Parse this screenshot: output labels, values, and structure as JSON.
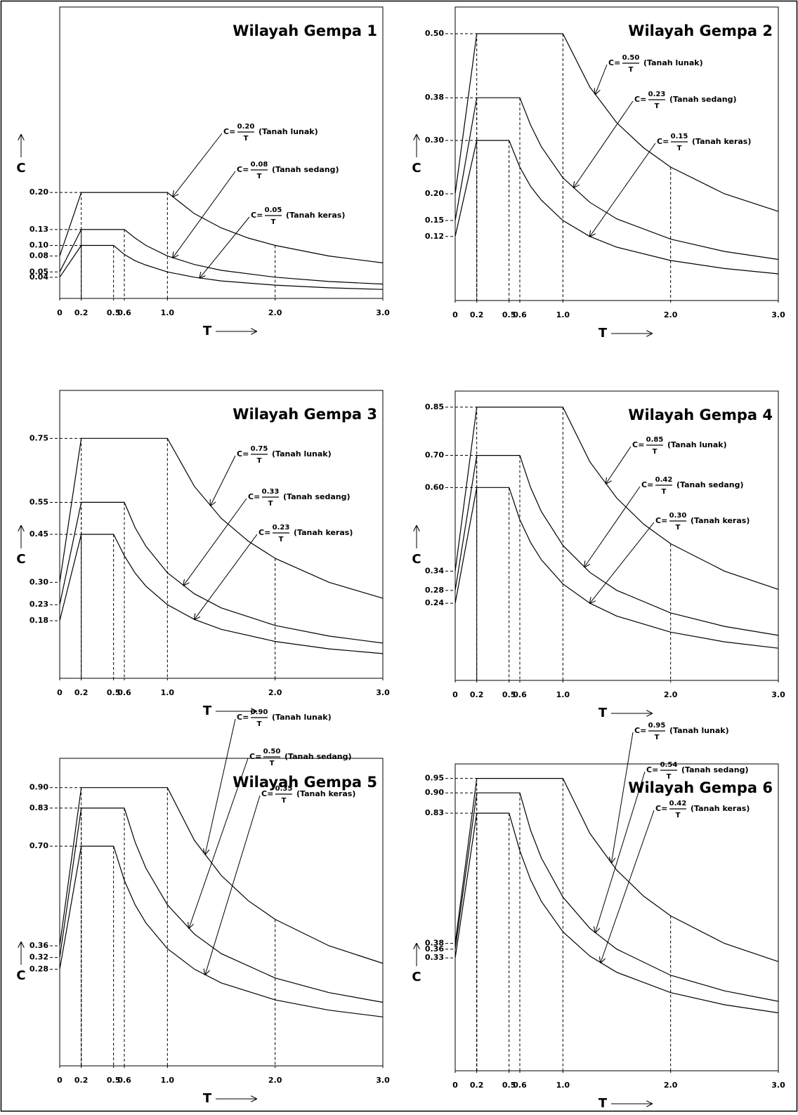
{
  "chart_data": [
    {
      "type": "line",
      "title": "Wilayah Gempa 1",
      "x_label": "T",
      "y_label": "C",
      "xlim": [
        0,
        3
      ],
      "ylim": [
        0,
        0.55
      ],
      "xticks": [
        0,
        0.2,
        0.5,
        0.6,
        {
          "value": 1,
          "label": "1.0"
        },
        {
          "value": 2,
          "label": "2.0"
        },
        {
          "value": 3,
          "label": "3.0"
        }
      ],
      "yticks": [
        {
          "value": 0.2,
          "label": "0.20"
        },
        0.13,
        {
          "value": 0.1,
          "label": "0.10"
        },
        0.08,
        0.05,
        0.04
      ],
      "series": [
        {
          "name": "(Tanah lunak)",
          "color": "#000000",
          "formula_prefix": "C=",
          "formula_numerator": "0.20",
          "formula_denominator": "T",
          "x": [
            0,
            0.2,
            1.0,
            1.25,
            1.5,
            1.75,
            2.0,
            2.5,
            3.0
          ],
          "values": [
            0.08,
            0.2,
            0.2,
            0.16,
            0.133,
            0.114,
            0.1,
            0.08,
            0.067
          ]
        },
        {
          "name": "(Tanah sedang)",
          "color": "#000000",
          "formula_prefix": "C=",
          "formula_numerator": "0.08",
          "formula_denominator": "T",
          "x": [
            0,
            0.2,
            0.6,
            0.7,
            0.8,
            1.0,
            1.25,
            1.5,
            2.0,
            2.5,
            3.0
          ],
          "values": [
            0.05,
            0.13,
            0.13,
            0.114,
            0.1,
            0.08,
            0.064,
            0.053,
            0.04,
            0.032,
            0.027
          ]
        },
        {
          "name": "(Tanah keras)",
          "color": "#000000",
          "formula_prefix": "C=",
          "formula_numerator": "0.05",
          "formula_denominator": "T",
          "x": [
            0,
            0.2,
            0.5,
            0.6,
            0.7,
            0.8,
            1.0,
            1.25,
            1.5,
            2.0,
            2.5,
            3.0
          ],
          "values": [
            0.04,
            0.1,
            0.1,
            0.083,
            0.071,
            0.063,
            0.05,
            0.04,
            0.033,
            0.025,
            0.02,
            0.017
          ]
        }
      ]
    },
    {
      "type": "line",
      "title": "Wilayah Gempa 2",
      "x_label": "T",
      "y_label": "C",
      "xlim": [
        0,
        3
      ],
      "ylim": [
        0,
        0.55
      ],
      "xticks": [
        0,
        0.2,
        0.5,
        0.6,
        {
          "value": 1,
          "label": "1.0"
        },
        {
          "value": 2,
          "label": "2.0"
        },
        {
          "value": 3,
          "label": "3.0"
        }
      ],
      "yticks": [
        {
          "value": 0.5,
          "label": "0.50"
        },
        0.38,
        {
          "value": 0.3,
          "label": "0.30"
        },
        {
          "value": 0.2,
          "label": "0.20"
        },
        0.15,
        0.12
      ],
      "series": [
        {
          "name": "(Tanah lunak)",
          "color": "#000000",
          "formula_prefix": "C=",
          "formula_numerator": "0.50",
          "formula_denominator": "T",
          "x": [
            0,
            0.2,
            1.0,
            1.25,
            1.5,
            1.75,
            2.0,
            2.5,
            3.0
          ],
          "values": [
            0.2,
            0.5,
            0.5,
            0.4,
            0.333,
            0.286,
            0.25,
            0.2,
            0.167
          ]
        },
        {
          "name": "(Tanah sedang)",
          "color": "#000000",
          "formula_prefix": "C=",
          "formula_numerator": "0.23",
          "formula_denominator": "T",
          "x": [
            0,
            0.2,
            0.6,
            0.7,
            0.8,
            1.0,
            1.25,
            1.5,
            2.0,
            2.5,
            3.0
          ],
          "values": [
            0.15,
            0.38,
            0.38,
            0.329,
            0.288,
            0.23,
            0.184,
            0.153,
            0.115,
            0.092,
            0.077
          ]
        },
        {
          "name": "(Tanah keras)",
          "color": "#000000",
          "formula_prefix": "C=",
          "formula_numerator": "0.15",
          "formula_denominator": "T",
          "x": [
            0,
            0.2,
            0.5,
            0.6,
            0.7,
            0.8,
            1.0,
            1.25,
            1.5,
            2.0,
            2.5,
            3.0
          ],
          "values": [
            0.12,
            0.3,
            0.3,
            0.25,
            0.214,
            0.188,
            0.15,
            0.12,
            0.1,
            0.075,
            0.06,
            0.05
          ]
        }
      ]
    },
    {
      "type": "line",
      "title": "Wilayah Gempa 3",
      "x_label": "T",
      "y_label": "C",
      "xlim": [
        0,
        3
      ],
      "ylim": [
        0,
        0.9
      ],
      "xticks": [
        0,
        0.2,
        0.5,
        0.6,
        {
          "value": 1,
          "label": "1.0"
        },
        {
          "value": 2,
          "label": "2.0"
        },
        {
          "value": 3,
          "label": "3.0"
        }
      ],
      "yticks": [
        0.75,
        0.55,
        0.45,
        {
          "value": 0.3,
          "label": "0.30"
        },
        0.23,
        0.18
      ],
      "series": [
        {
          "name": "(Tanah lunak)",
          "color": "#000000",
          "formula_prefix": "C=",
          "formula_numerator": "0.75",
          "formula_denominator": "T",
          "x": [
            0,
            0.2,
            1.0,
            1.25,
            1.5,
            1.75,
            2.0,
            2.5,
            3.0
          ],
          "values": [
            0.3,
            0.75,
            0.75,
            0.6,
            0.5,
            0.429,
            0.375,
            0.3,
            0.25
          ]
        },
        {
          "name": "(Tanah sedang)",
          "color": "#000000",
          "formula_prefix": "C=",
          "formula_numerator": "0.33",
          "formula_denominator": "T",
          "x": [
            0,
            0.2,
            0.6,
            0.7,
            0.8,
            1.0,
            1.25,
            1.5,
            2.0,
            2.5,
            3.0
          ],
          "values": [
            0.23,
            0.55,
            0.55,
            0.471,
            0.413,
            0.33,
            0.264,
            0.22,
            0.165,
            0.132,
            0.11
          ]
        },
        {
          "name": "(Tanah keras)",
          "color": "#000000",
          "formula_prefix": "C=",
          "formula_numerator": "0.23",
          "formula_denominator": "T",
          "x": [
            0,
            0.2,
            0.5,
            0.6,
            0.7,
            0.8,
            1.0,
            1.25,
            1.5,
            2.0,
            2.5,
            3.0
          ],
          "values": [
            0.18,
            0.45,
            0.45,
            0.383,
            0.329,
            0.288,
            0.23,
            0.184,
            0.153,
            0.115,
            0.092,
            0.077
          ]
        }
      ]
    },
    {
      "type": "line",
      "title": "Wilayah Gempa 4",
      "x_label": "T",
      "y_label": "C",
      "xlim": [
        0,
        3
      ],
      "ylim": [
        0,
        0.9
      ],
      "xticks": [
        0,
        0.2,
        0.5,
        0.6,
        {
          "value": 1,
          "label": "1.0"
        },
        {
          "value": 2,
          "label": "2.0"
        },
        {
          "value": 3,
          "label": "3.0"
        }
      ],
      "yticks": [
        0.85,
        {
          "value": 0.7,
          "label": "0.70"
        },
        {
          "value": 0.6,
          "label": "0.60"
        },
        0.34,
        0.28,
        0.24
      ],
      "series": [
        {
          "name": "(Tanah lunak)",
          "color": "#000000",
          "formula_prefix": "C=",
          "formula_numerator": "0.85",
          "formula_denominator": "T",
          "x": [
            0,
            0.2,
            1.0,
            1.25,
            1.5,
            1.75,
            2.0,
            2.5,
            3.0
          ],
          "values": [
            0.34,
            0.85,
            0.85,
            0.68,
            0.567,
            0.486,
            0.425,
            0.34,
            0.283
          ]
        },
        {
          "name": "(Tanah sedang)",
          "color": "#000000",
          "formula_prefix": "C=",
          "formula_numerator": "0.42",
          "formula_denominator": "T",
          "x": [
            0,
            0.2,
            0.6,
            0.7,
            0.8,
            1.0,
            1.25,
            1.5,
            2.0,
            2.5,
            3.0
          ],
          "values": [
            0.28,
            0.7,
            0.7,
            0.6,
            0.525,
            0.42,
            0.336,
            0.28,
            0.21,
            0.168,
            0.14
          ]
        },
        {
          "name": "(Tanah keras)",
          "color": "#000000",
          "formula_prefix": "C=",
          "formula_numerator": "0.30",
          "formula_denominator": "T",
          "x": [
            0,
            0.2,
            0.5,
            0.6,
            0.7,
            0.8,
            1.0,
            1.25,
            1.5,
            2.0,
            2.5,
            3.0
          ],
          "values": [
            0.24,
            0.6,
            0.6,
            0.5,
            0.429,
            0.375,
            0.3,
            0.24,
            0.2,
            0.15,
            0.12,
            0.1
          ]
        }
      ]
    },
    {
      "type": "line",
      "title": "Wilayah Gempa 5",
      "x_label": "T",
      "y_label": "C",
      "xlim": [
        0,
        3
      ],
      "ylim": [
        -0.05,
        1.0
      ],
      "xticks": [
        0,
        0.2,
        0.5,
        0.6,
        {
          "value": 1,
          "label": "1.0"
        },
        {
          "value": 2,
          "label": "2.0"
        },
        {
          "value": 3,
          "label": "3.0"
        }
      ],
      "yticks": [
        {
          "value": 0.9,
          "label": "0.90"
        },
        0.83,
        {
          "value": 0.7,
          "label": "0.70"
        },
        0.36,
        0.32,
        0.28
      ],
      "series": [
        {
          "name": "(Tanah lunak)",
          "color": "#000000",
          "formula_prefix": "C=",
          "formula_numerator": "0.90",
          "formula_denominator": "T",
          "x": [
            0,
            0.2,
            1.0,
            1.25,
            1.5,
            1.75,
            2.0,
            2.5,
            3.0
          ],
          "values": [
            0.36,
            0.9,
            0.9,
            0.72,
            0.6,
            0.514,
            0.45,
            0.36,
            0.3
          ]
        },
        {
          "name": "(Tanah sedang)",
          "color": "#000000",
          "formula_prefix": "C=",
          "formula_numerator": "0.50",
          "formula_denominator": "T",
          "x": [
            0,
            0.2,
            0.6,
            0.7,
            0.8,
            1.0,
            1.25,
            1.5,
            2.0,
            2.5,
            3.0
          ],
          "values": [
            0.32,
            0.83,
            0.83,
            0.714,
            0.625,
            0.5,
            0.4,
            0.333,
            0.25,
            0.2,
            0.167
          ]
        },
        {
          "name": "(Tanah keras)",
          "color": "#000000",
          "formula_prefix": "C=",
          "formula_numerator": "0.35",
          "formula_denominator": "T",
          "x": [
            0,
            0.2,
            0.5,
            0.6,
            0.7,
            0.8,
            1.0,
            1.25,
            1.5,
            2.0,
            2.5,
            3.0
          ],
          "values": [
            0.28,
            0.7,
            0.7,
            0.583,
            0.5,
            0.438,
            0.35,
            0.28,
            0.233,
            0.175,
            0.14,
            0.117
          ]
        }
      ]
    },
    {
      "type": "line",
      "title": "Wilayah Gempa 6",
      "x_label": "T",
      "y_label": "C",
      "xlim": [
        0,
        3
      ],
      "ylim": [
        -0.06,
        1.0
      ],
      "xticks": [
        0,
        0.2,
        0.5,
        0.6,
        {
          "value": 1,
          "label": "1.0"
        },
        {
          "value": 2,
          "label": "2.0"
        },
        {
          "value": 3,
          "label": "3.0"
        }
      ],
      "yticks": [
        0.95,
        {
          "value": 0.9,
          "label": "0.90"
        },
        0.83,
        0.38,
        0.36,
        0.33
      ],
      "series": [
        {
          "name": "(Tanah lunak)",
          "color": "#000000",
          "formula_prefix": "C=",
          "formula_numerator": "0.95",
          "formula_denominator": "T",
          "x": [
            0,
            0.2,
            1.0,
            1.25,
            1.5,
            1.75,
            2.0,
            2.5,
            3.0
          ],
          "values": [
            0.38,
            0.95,
            0.95,
            0.76,
            0.633,
            0.543,
            0.475,
            0.38,
            0.317
          ]
        },
        {
          "name": "(Tanah sedang)",
          "color": "#000000",
          "formula_prefix": "C=",
          "formula_numerator": "0.54",
          "formula_denominator": "T",
          "x": [
            0,
            0.2,
            0.6,
            0.7,
            0.8,
            1.0,
            1.25,
            1.5,
            2.0,
            2.5,
            3.0
          ],
          "values": [
            0.36,
            0.9,
            0.9,
            0.771,
            0.675,
            0.54,
            0.432,
            0.36,
            0.27,
            0.216,
            0.18
          ]
        },
        {
          "name": "(Tanah keras)",
          "color": "#000000",
          "formula_prefix": "C=",
          "formula_numerator": "0.42",
          "formula_denominator": "T",
          "x": [
            0,
            0.2,
            0.5,
            0.6,
            0.7,
            0.8,
            1.0,
            1.25,
            1.5,
            2.0,
            2.5,
            3.0
          ],
          "values": [
            0.33,
            0.83,
            0.83,
            0.7,
            0.6,
            0.525,
            0.42,
            0.336,
            0.28,
            0.21,
            0.168,
            0.14
          ]
        }
      ]
    }
  ]
}
